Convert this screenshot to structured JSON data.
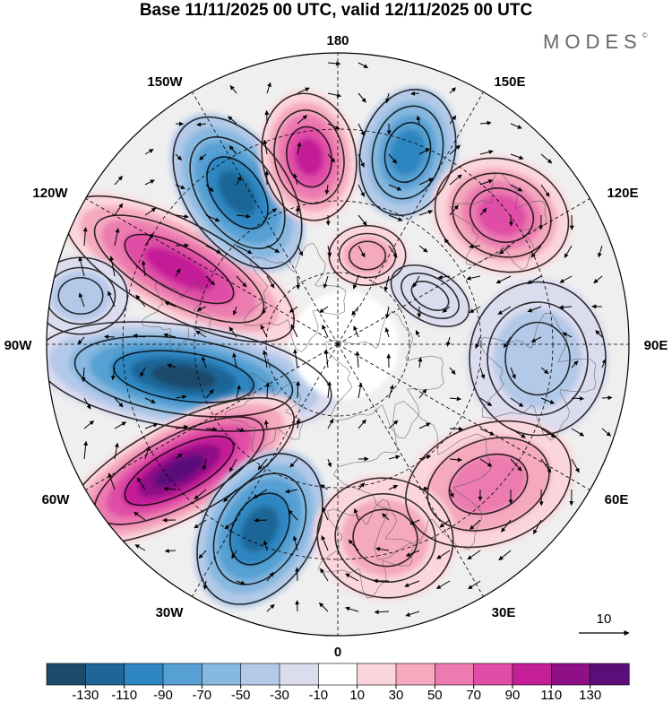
{
  "title": "Base 11/11/2025 00 UTC, valid 12/11/2025 00 UTC",
  "brand": {
    "name": "MODES",
    "mark": "©"
  },
  "longitude_labels": {
    "top": "180",
    "bottom": "0",
    "left": "90W",
    "right": "90E",
    "upper_left_1": "150W",
    "upper_left_2": "120W",
    "upper_right_1": "150E",
    "upper_right_2": "120E",
    "lower_left_1": "60W",
    "lower_left_2": "30W",
    "lower_right_1": "60E",
    "lower_right_2": "30E"
  },
  "vector_reference": {
    "label": "10"
  },
  "colorbar": {
    "ticks": [
      "-130",
      "-110",
      "-90",
      "-70",
      "-50",
      "-30",
      "-10",
      "10",
      "30",
      "50",
      "70",
      "90",
      "110",
      "130"
    ],
    "colors": [
      "#1b4a6b",
      "#1f6697",
      "#2e86c1",
      "#56a0d3",
      "#86b8e0",
      "#b3c9e8",
      "#dcdcef",
      "#ffffff",
      "#fbd5dc",
      "#f4a9be",
      "#ec7bb0",
      "#e04da6",
      "#c41f97",
      "#8f0f87",
      "#5a0e7a"
    ]
  },
  "colors": {
    "map_background": "#efefef",
    "grid": "#000000",
    "arrow": "#000000"
  },
  "icons": {
    "vector": "arrow-icon"
  }
}
